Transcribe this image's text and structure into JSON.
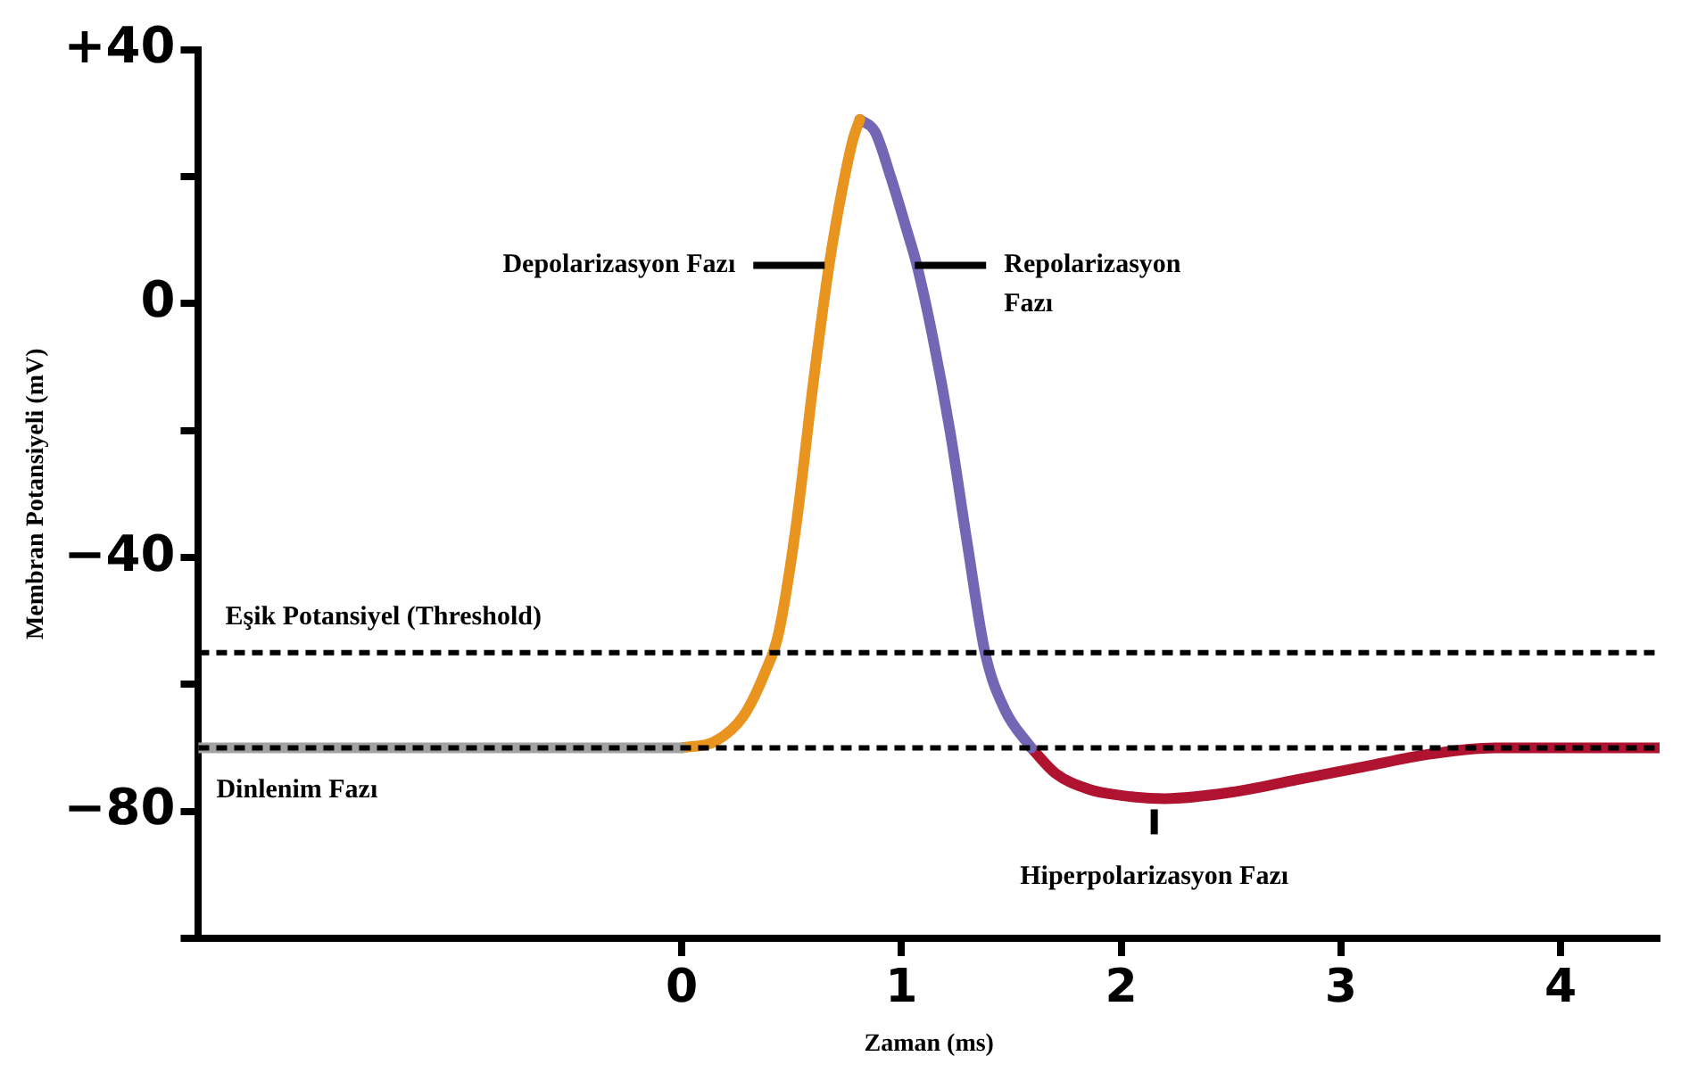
{
  "chart_data": {
    "type": "line",
    "xlabel": "Zaman (ms)",
    "ylabel": "Membran Potansiyeli (mV)",
    "xlim": [
      -2.2,
      4.45
    ],
    "xticks": [
      0,
      1,
      2,
      3,
      4
    ],
    "ylim": [
      -100,
      40
    ],
    "yticks": [
      {
        "value": 40,
        "label": "+40"
      },
      {
        "value": 20,
        "label": null
      },
      {
        "value": 0,
        "label": "0"
      },
      {
        "value": -20,
        "label": null
      },
      {
        "value": -40,
        "label": "−40"
      },
      {
        "value": -60,
        "label": null
      },
      {
        "value": -80,
        "label": "−80"
      },
      {
        "value": -100,
        "label": null
      }
    ],
    "grid": false,
    "legend": false,
    "marker": "none",
    "line_style": "solid",
    "series": [
      {
        "color": "#a3a3a3",
        "x": [
          -2.2,
          0
        ],
        "values": [
          -70,
          -70
        ]
      },
      {
        "color": "#e8941e",
        "x": [
          0,
          0.15,
          0.28,
          0.38,
          0.44,
          0.52,
          0.6,
          0.67,
          0.73,
          0.78,
          0.81
        ],
        "values": [
          -70,
          -69,
          -65,
          -58,
          -52,
          -35,
          -12,
          6,
          18,
          26,
          29
        ]
      },
      {
        "color": "#7367b5",
        "x": [
          0.81,
          0.88,
          0.95,
          1.02,
          1.07,
          1.14,
          1.22,
          1.3,
          1.38,
          1.47,
          1.59
        ],
        "values": [
          29,
          27,
          20,
          12,
          6,
          -5,
          -20,
          -38,
          -55,
          -64,
          -70
        ]
      },
      {
        "color": "#b0132f",
        "x": [
          1.59,
          1.7,
          1.85,
          2.0,
          2.2,
          2.5,
          2.8,
          3.1,
          3.4,
          3.7,
          4.45
        ],
        "values": [
          -70,
          -74,
          -76.5,
          -77.5,
          -78,
          -77,
          -75,
          -73,
          -71,
          -70,
          -70
        ]
      }
    ],
    "ref_lines": [
      {
        "axis": "y",
        "value": -55,
        "label": "Eşik Potansiyel (Threshold)",
        "line_style": "dashed",
        "color": "#000000"
      },
      {
        "axis": "y",
        "value": -70,
        "line_style": "dashed",
        "color": "#000000"
      }
    ],
    "annotations": [
      {
        "text": "Depolarizasyon Fazı",
        "x": 0.65,
        "y": 6
      },
      {
        "text": "Repolarizasyon\nFazı",
        "x": 1.06,
        "y": 6
      },
      {
        "text": "Dinlenim Fazı",
        "x": -2.2,
        "y": -70
      },
      {
        "text": "Hiperpolarizasyon Fazı",
        "x": 2.15,
        "y": -78
      }
    ]
  }
}
